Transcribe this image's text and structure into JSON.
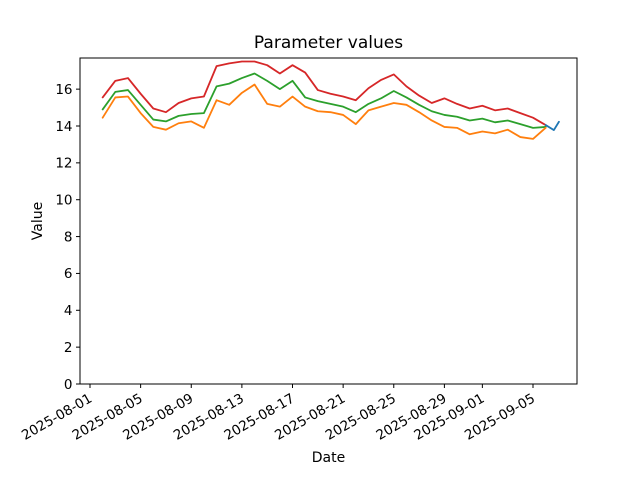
{
  "chart_data": {
    "type": "line",
    "title": "Parameter values",
    "xlabel": "Date",
    "ylabel": "Value",
    "grid": false,
    "legend": "none",
    "background": "#ffffff",
    "ylim": [
      0,
      17.7
    ],
    "y_ticks": [
      0,
      2,
      4,
      6,
      8,
      10,
      12,
      14,
      16
    ],
    "day_offset_epoch": "2025-08-01",
    "x_ticks": [
      {
        "label": "2025-08-01",
        "day_offset": 0
      },
      {
        "label": "2025-08-05",
        "day_offset": 4
      },
      {
        "label": "2025-08-09",
        "day_offset": 8
      },
      {
        "label": "2025-08-13",
        "day_offset": 12
      },
      {
        "label": "2025-08-17",
        "day_offset": 16
      },
      {
        "label": "2025-08-21",
        "day_offset": 20
      },
      {
        "label": "2025-08-25",
        "day_offset": 24
      },
      {
        "label": "2025-08-29",
        "day_offset": 28
      },
      {
        "label": "2025-09-01",
        "day_offset": 31
      },
      {
        "label": "2025-09-05",
        "day_offset": 35
      }
    ],
    "dates": [
      "2025-08-02",
      "2025-08-03",
      "2025-08-04",
      "2025-08-05",
      "2025-08-06",
      "2025-08-07",
      "2025-08-08",
      "2025-08-09",
      "2025-08-10",
      "2025-08-11",
      "2025-08-12",
      "2025-08-13",
      "2025-08-14",
      "2025-08-15",
      "2025-08-16",
      "2025-08-17",
      "2025-08-18",
      "2025-08-19",
      "2025-08-20",
      "2025-08-21",
      "2025-08-22",
      "2025-08-23",
      "2025-08-24",
      "2025-08-25",
      "2025-08-26",
      "2025-08-27",
      "2025-08-28",
      "2025-08-29",
      "2025-08-30",
      "2025-08-31",
      "2025-09-01",
      "2025-09-02",
      "2025-09-03",
      "2025-09-04",
      "2025-09-05",
      "2025-09-06"
    ],
    "series": [
      {
        "name": "red",
        "color": "#d62728",
        "values": [
          15.55,
          16.45,
          16.6,
          15.75,
          14.95,
          14.75,
          15.25,
          15.5,
          15.6,
          17.25,
          17.4,
          17.5,
          17.5,
          17.3,
          16.85,
          17.3,
          16.9,
          15.95,
          15.75,
          15.6,
          15.4,
          16.05,
          16.5,
          16.8,
          16.15,
          15.65,
          15.25,
          15.5,
          15.2,
          14.95,
          15.1,
          14.85,
          14.95,
          14.7,
          14.45,
          14.05
        ]
      },
      {
        "name": "green",
        "color": "#2ca02c",
        "values": [
          14.9,
          15.85,
          15.95,
          15.15,
          14.35,
          14.25,
          14.55,
          14.65,
          14.7,
          16.15,
          16.3,
          16.6,
          16.85,
          16.45,
          16.0,
          16.45,
          15.55,
          15.35,
          15.2,
          15.05,
          14.75,
          15.2,
          15.5,
          15.9,
          15.55,
          15.15,
          14.8,
          14.6,
          14.5,
          14.3,
          14.4,
          14.2,
          14.3,
          14.1,
          13.9,
          13.95
        ]
      },
      {
        "name": "orange",
        "color": "#ff7f0e",
        "values": [
          14.45,
          15.55,
          15.6,
          14.7,
          13.95,
          13.8,
          14.15,
          14.25,
          13.9,
          15.4,
          15.15,
          15.8,
          16.25,
          15.2,
          15.05,
          15.6,
          15.05,
          14.8,
          14.75,
          14.6,
          14.1,
          14.85,
          15.05,
          15.25,
          15.15,
          14.75,
          14.3,
          13.95,
          13.9,
          13.55,
          13.7,
          13.6,
          13.8,
          13.4,
          13.3,
          13.9
        ]
      },
      {
        "name": "blue",
        "color": "#1f77b4",
        "day_offsets": [
          36,
          36.65,
          37.05
        ],
        "values": [
          14.05,
          13.78,
          14.23
        ]
      }
    ]
  }
}
